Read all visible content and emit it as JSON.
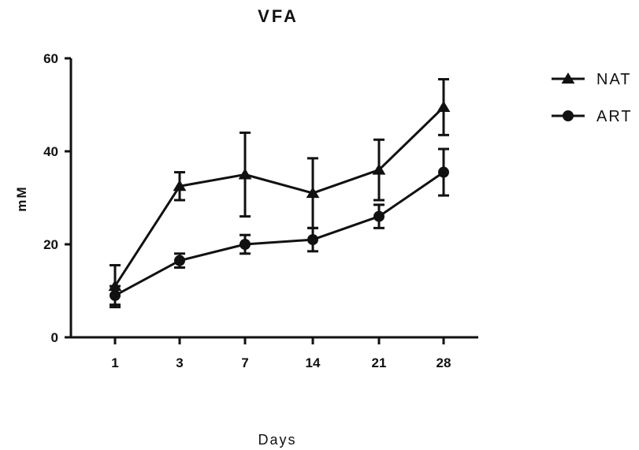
{
  "chart_data": {
    "type": "line",
    "title": "VFA",
    "xlabel": "Days",
    "ylabel": "mM",
    "categories": [
      "1",
      "3",
      "7",
      "14",
      "21",
      "28"
    ],
    "yticks": [
      0,
      20,
      40,
      60
    ],
    "ylim": [
      0,
      60
    ],
    "grid": false,
    "legend_position": "right",
    "series": [
      {
        "name": "NAT",
        "marker": "triangle",
        "values": [
          11,
          32.5,
          35,
          31,
          36,
          49.5
        ],
        "errors": [
          4.5,
          3,
          9,
          7.5,
          6.5,
          6
        ]
      },
      {
        "name": "ART",
        "marker": "circle",
        "values": [
          9,
          16.5,
          20,
          21,
          26,
          35.5
        ],
        "errors": [
          2,
          1.5,
          2,
          2.5,
          2.5,
          5
        ]
      }
    ]
  }
}
